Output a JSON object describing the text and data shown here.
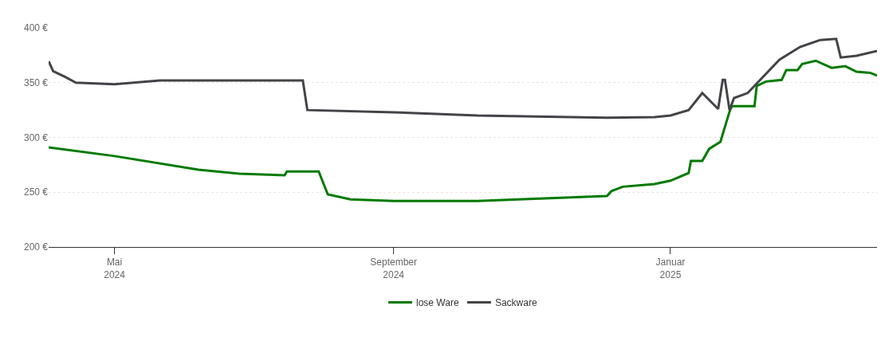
{
  "chart_data": {
    "type": "line",
    "xlim": [
      "2024-04-02",
      "2025-04-02"
    ],
    "xticks": [
      {
        "value": "2024-05-01",
        "label": "Mai\n2024"
      },
      {
        "value": "2024-09-01",
        "label": "September\n2024"
      },
      {
        "value": "2025-01-01",
        "label": "Januar\n2025"
      }
    ],
    "ylim": [
      200,
      400
    ],
    "yticks": [
      {
        "value": 200,
        "label": "200 €"
      },
      {
        "value": 250,
        "label": "250 €"
      },
      {
        "value": 300,
        "label": "300 €"
      },
      {
        "value": 350,
        "label": "350 €"
      },
      {
        "value": 400,
        "label": "400 €"
      }
    ],
    "grid": "y",
    "legend": "bottom",
    "marker": "none",
    "line_style": "solid",
    "series": [
      {
        "name": "lose Ware",
        "color": "#007a00",
        "x": [
          "2024-04-02",
          "2024-05-01",
          "2024-06-07",
          "2024-06-25",
          "2024-07-15",
          "2024-07-16",
          "2024-07-30",
          "2024-08-03",
          "2024-08-13",
          "2024-09-01",
          "2024-10-08",
          "2024-12-04",
          "2024-12-06",
          "2024-12-11",
          "2024-12-25",
          "2025-01-01",
          "2025-01-09",
          "2025-01-10",
          "2025-01-15",
          "2025-01-18",
          "2025-01-23",
          "2025-01-27",
          "2025-01-28",
          "2025-02-07",
          "2025-02-08",
          "2025-02-12",
          "2025-02-19",
          "2025-02-21",
          "2025-02-26",
          "2025-02-28",
          "2025-03-06",
          "2025-03-13",
          "2025-03-19",
          "2025-03-24",
          "2025-03-30",
          "2025-04-02"
        ],
        "values": [
          291,
          283,
          270.5,
          267,
          265.5,
          269,
          269,
          248,
          243.5,
          242,
          242,
          246.5,
          251,
          255,
          257.5,
          260.5,
          267.5,
          278.5,
          278.5,
          289.5,
          296,
          323.5,
          328.5,
          328.5,
          347,
          351,
          352.5,
          361.5,
          361.5,
          367,
          370,
          363.5,
          365,
          360,
          359,
          356.5
        ]
      },
      {
        "name": "Sackware",
        "color": "#434348",
        "x": [
          "2024-04-02",
          "2024-04-04",
          "2024-04-09",
          "2024-04-14",
          "2024-05-01",
          "2024-05-21",
          "2024-06-25",
          "2024-07-23",
          "2024-07-25",
          "2024-09-01",
          "2024-10-08",
          "2024-12-04",
          "2024-12-25",
          "2025-01-01",
          "2025-01-09",
          "2025-01-15",
          "2025-01-22",
          "2025-01-24",
          "2025-01-25",
          "2025-01-27",
          "2025-01-29",
          "2025-02-04",
          "2025-02-18",
          "2025-02-27",
          "2025-03-08",
          "2025-03-15",
          "2025-03-17",
          "2025-03-24",
          "2025-04-02"
        ],
        "values": [
          369.5,
          360.5,
          355.5,
          350,
          348.5,
          352,
          352,
          352,
          325,
          323,
          320,
          318,
          318.5,
          320,
          325,
          340.5,
          326,
          352.5,
          352.5,
          325,
          336,
          340.5,
          371,
          382.5,
          389,
          390,
          373,
          374.5,
          379
        ]
      }
    ]
  }
}
